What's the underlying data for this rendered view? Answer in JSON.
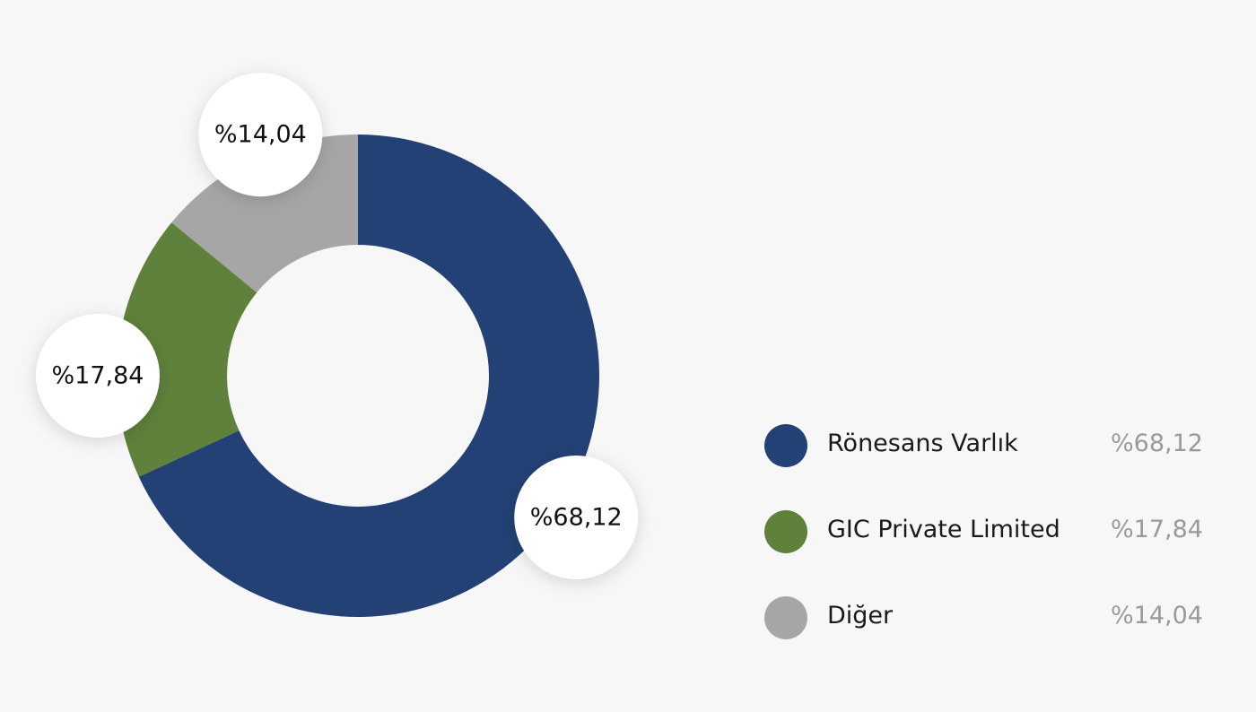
{
  "chart_data": {
    "type": "pie",
    "donut": true,
    "series": [
      {
        "name": "Rönesans Varlık",
        "value": 68.12,
        "label": "%68,12",
        "color": "#234175"
      },
      {
        "name": "GIC Private Limited",
        "value": 17.84,
        "label": "%17,84",
        "color": "#5f813b"
      },
      {
        "name": "Diğer",
        "value": 14.04,
        "label": "%14,04",
        "color": "#a6a6a6"
      }
    ],
    "legend_position": "right"
  }
}
